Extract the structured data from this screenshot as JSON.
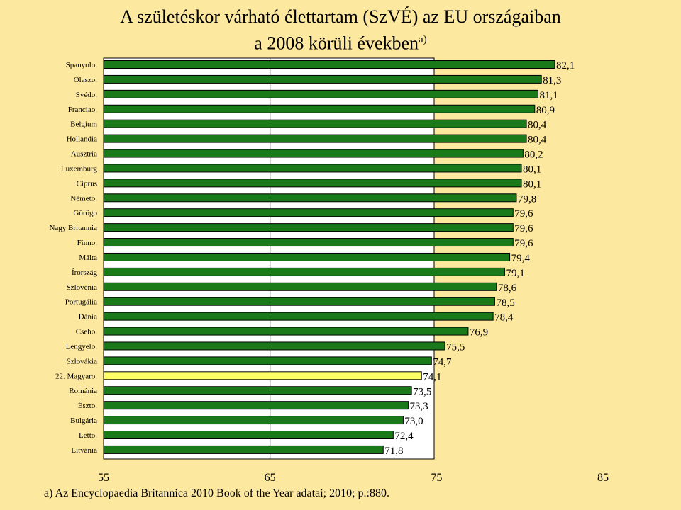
{
  "title": {
    "line1": "A születéskor várható élettartam (SzVÉ)  az EU országaiban",
    "line2": "a 2008 körüli években",
    "line2_sup": "a)"
  },
  "footnote": "a) Az Encyclopaedia Britannica 2010 Book of the Year adatai; 2010; p.:880.",
  "colors": {
    "background": "#fde8a0",
    "plot_area": "#ffffff",
    "bar": "#1a7a1a",
    "highlight_bar": "#ffff66",
    "bar_outline": "#000000"
  },
  "chart_data": {
    "type": "bar",
    "orientation": "horizontal",
    "categories": [
      "Spanyolo.",
      "Olaszo.",
      "Svédo.",
      "Franciao.",
      "Belgium",
      "Hollandia",
      "Ausztria",
      "Luxemburg",
      "Ciprus",
      "Németo.",
      "Görögo",
      "Nagy Britannia",
      "Finno.",
      "Málta",
      "Írország",
      "Szlovénia",
      "Portugália",
      "Dánia",
      "Cseho.",
      "Lengyelo.",
      "Szlovákia",
      "22. Magyaro.",
      "Románia",
      "Észto.",
      "Bulgária",
      "Letto.",
      "Litvánia"
    ],
    "values": [
      82.1,
      81.3,
      81.1,
      80.9,
      80.4,
      80.4,
      80.2,
      80.1,
      80.1,
      79.8,
      79.6,
      79.6,
      79.6,
      79.4,
      79.1,
      78.6,
      78.5,
      78.4,
      76.9,
      75.5,
      74.7,
      74.1,
      73.5,
      73.3,
      73.0,
      72.4,
      71.8
    ],
    "data_labels": [
      "82,1",
      "81,3",
      "81,1",
      "80,9",
      "80,4",
      "80,4",
      "80,2",
      "80,1",
      "80,1",
      "79,8",
      "79,6",
      "79,6",
      "79,6",
      "79,4",
      "79,1",
      "78,6",
      "78,5",
      "78,4",
      "76,9",
      "75,5",
      "74,7",
      "74,1",
      "73,5",
      "73,3",
      "73,0",
      "72,4",
      "71,8"
    ],
    "highlight_category": "22. Magyaro.",
    "xlim": [
      55,
      85
    ],
    "xticks": [
      55,
      65,
      75,
      85
    ],
    "xtick_labels": [
      "55",
      "65",
      "75",
      "85"
    ],
    "grid": "vertical lines at ticks",
    "legend": "none",
    "title": "A születéskor várható élettartam (SzVÉ)  az EU országaiban a 2008 körüli években",
    "xlabel": "",
    "ylabel": ""
  }
}
